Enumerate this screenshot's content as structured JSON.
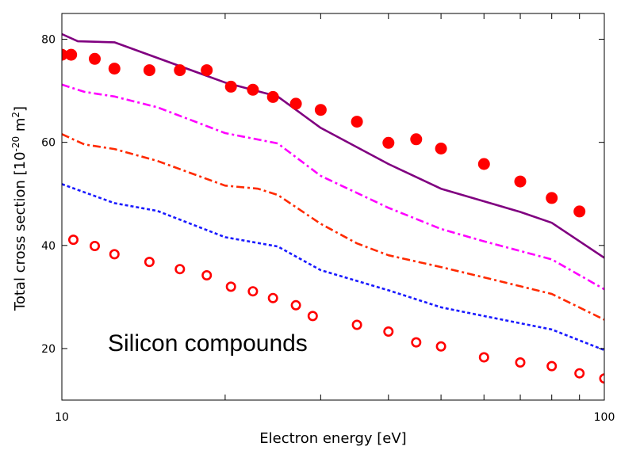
{
  "chart_data": {
    "type": "scatter",
    "xlabel": "Electron energy [eV]",
    "ylabel": {
      "prefix": "Total cross section [10",
      "exp1": "-20",
      "mid": " m",
      "exp2": "2",
      "suffix": "]"
    },
    "annotation": "Silicon compounds",
    "x_scale": "log",
    "xlim": [
      10,
      100
    ],
    "ylim": [
      10,
      85
    ],
    "x_ticks": [
      10,
      100
    ],
    "x_tick_labels": [
      "10",
      "100"
    ],
    "y_ticks": [
      20,
      40,
      60,
      80
    ],
    "y_tick_labels": [
      "20",
      "40",
      "60",
      "80"
    ],
    "grid": false,
    "series": [
      {
        "style": "filled-circles",
        "color": "#ff0000",
        "x": [
          10,
          10.4,
          11.5,
          12.5,
          14.5,
          16.5,
          18.5,
          20.5,
          22.5,
          24.5,
          27,
          30,
          35,
          40,
          45,
          50,
          60,
          70,
          80,
          90
        ],
        "y": [
          77,
          77,
          76.2,
          74.3,
          74,
          74,
          74,
          70.8,
          70.2,
          68.8,
          67.5,
          66.3,
          64,
          59.9,
          60.6,
          58.8,
          55.8,
          52.4,
          49.2,
          46.6
        ]
      },
      {
        "style": "open-circles",
        "color": "#ff0000",
        "x": [
          10.5,
          11.5,
          12.5,
          14.5,
          16.5,
          18.5,
          20.5,
          22.5,
          24.5,
          27,
          29,
          35,
          40,
          45,
          50,
          60,
          70,
          80,
          90,
          100
        ],
        "y": [
          41.1,
          39.9,
          38.3,
          36.8,
          35.4,
          34.2,
          32,
          31.1,
          29.8,
          28.4,
          26.3,
          24.6,
          23.3,
          21.2,
          20.4,
          18.3,
          17.3,
          16.6,
          15.2,
          14.2
        ]
      },
      {
        "style": "solid",
        "color": "#800080",
        "x": [
          10,
          10.7,
          12.5,
          20,
          25,
          30,
          40,
          50,
          70,
          80,
          100
        ],
        "y": [
          81,
          79.6,
          79.4,
          71.6,
          68.9,
          62.8,
          55.8,
          51,
          46.5,
          44.4,
          37.6
        ]
      },
      {
        "style": "dash-dot",
        "color": "#ff00ff",
        "x": [
          10,
          11,
          12.5,
          15,
          20,
          25,
          30,
          40,
          50,
          60,
          80,
          100
        ],
        "y": [
          71.2,
          69.8,
          68.9,
          66.8,
          61.8,
          59.8,
          53.5,
          47.3,
          43.2,
          40.8,
          37.3,
          31.5
        ]
      },
      {
        "style": "dash-dot",
        "color": "#ff2a00",
        "x": [
          10,
          11,
          12.5,
          15,
          20,
          23,
          25,
          30,
          35,
          40,
          50,
          60,
          80,
          100
        ],
        "y": [
          61.6,
          59.6,
          58.7,
          56.4,
          51.6,
          51,
          49.8,
          44.2,
          40.4,
          38.1,
          35.8,
          33.8,
          30.6,
          25.6
        ]
      },
      {
        "style": "dashed",
        "color": "#1a1aff",
        "x": [
          10,
          12.5,
          15,
          20,
          25,
          30,
          40,
          50,
          60,
          80,
          100
        ],
        "y": [
          51.9,
          48.2,
          46.7,
          41.6,
          39.8,
          35.2,
          31.3,
          28,
          26.3,
          23.7,
          19.7
        ]
      }
    ]
  }
}
